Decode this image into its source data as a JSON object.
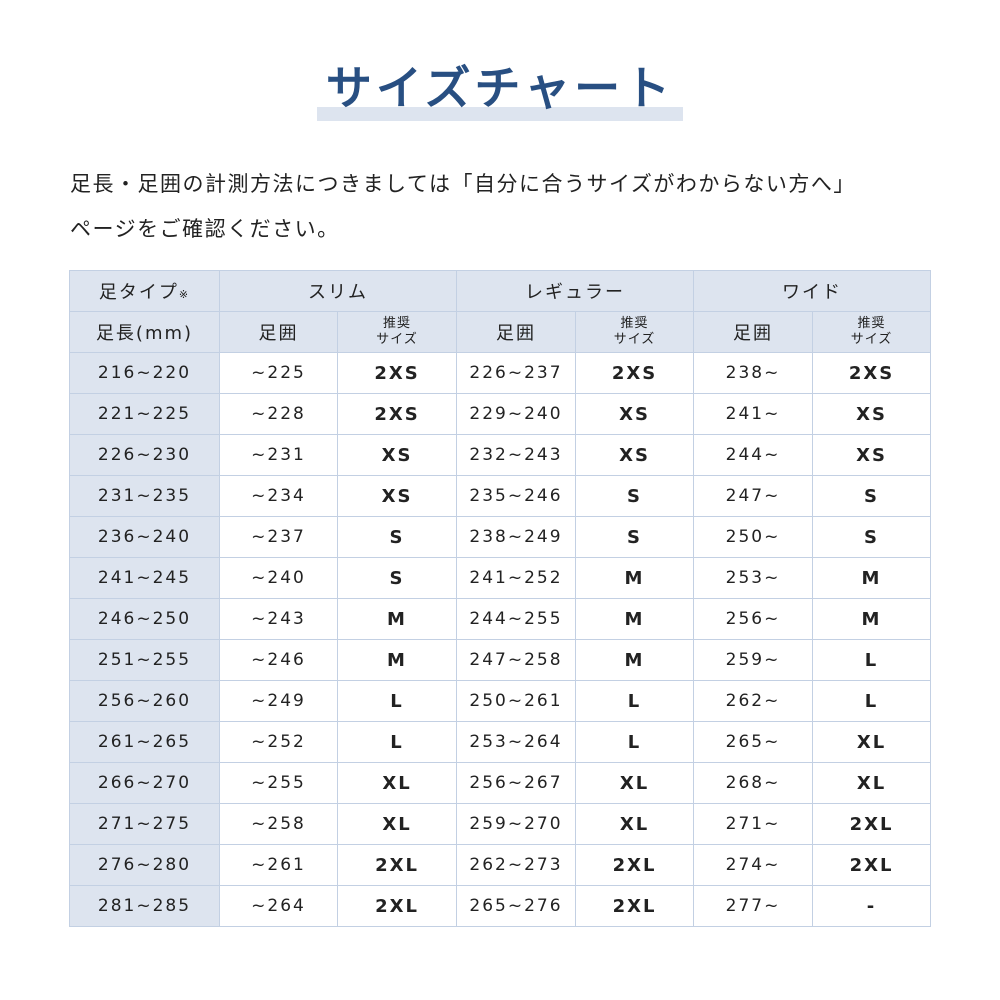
{
  "title": "サイズチャート",
  "intro": {
    "line1": "足長・足囲の計測方法につきましては「自分に合うサイズがわからない方へ」",
    "line2": "ページをご確認ください。"
  },
  "colors": {
    "title": "#284f82",
    "header_bg": "#dde4ef",
    "border": "#c3d0e3"
  },
  "table": {
    "foot_type_label": "足タイプ",
    "foot_type_note": "※",
    "foot_length_label": "足長(mm)",
    "groups": [
      "スリム",
      "レギュラー",
      "ワイド"
    ],
    "girth_label": "足囲",
    "recommend_label_1": "推奨",
    "recommend_label_2": "サイズ",
    "rows": [
      [
        "216~220",
        "~225",
        "2XS",
        "226~237",
        "2XS",
        "238~",
        "2XS"
      ],
      [
        "221~225",
        "~228",
        "2XS",
        "229~240",
        "XS",
        "241~",
        "XS"
      ],
      [
        "226~230",
        "~231",
        "XS",
        "232~243",
        "XS",
        "244~",
        "XS"
      ],
      [
        "231~235",
        "~234",
        "XS",
        "235~246",
        "S",
        "247~",
        "S"
      ],
      [
        "236~240",
        "~237",
        "S",
        "238~249",
        "S",
        "250~",
        "S"
      ],
      [
        "241~245",
        "~240",
        "S",
        "241~252",
        "M",
        "253~",
        "M"
      ],
      [
        "246~250",
        "~243",
        "M",
        "244~255",
        "M",
        "256~",
        "M"
      ],
      [
        "251~255",
        "~246",
        "M",
        "247~258",
        "M",
        "259~",
        "L"
      ],
      [
        "256~260",
        "~249",
        "L",
        "250~261",
        "L",
        "262~",
        "L"
      ],
      [
        "261~265",
        "~252",
        "L",
        "253~264",
        "L",
        "265~",
        "XL"
      ],
      [
        "266~270",
        "~255",
        "XL",
        "256~267",
        "XL",
        "268~",
        "XL"
      ],
      [
        "271~275",
        "~258",
        "XL",
        "259~270",
        "XL",
        "271~",
        "2XL"
      ],
      [
        "276~280",
        "~261",
        "2XL",
        "262~273",
        "2XL",
        "274~",
        "2XL"
      ],
      [
        "281~285",
        "~264",
        "2XL",
        "265~276",
        "2XL",
        "277~",
        "-"
      ]
    ]
  }
}
